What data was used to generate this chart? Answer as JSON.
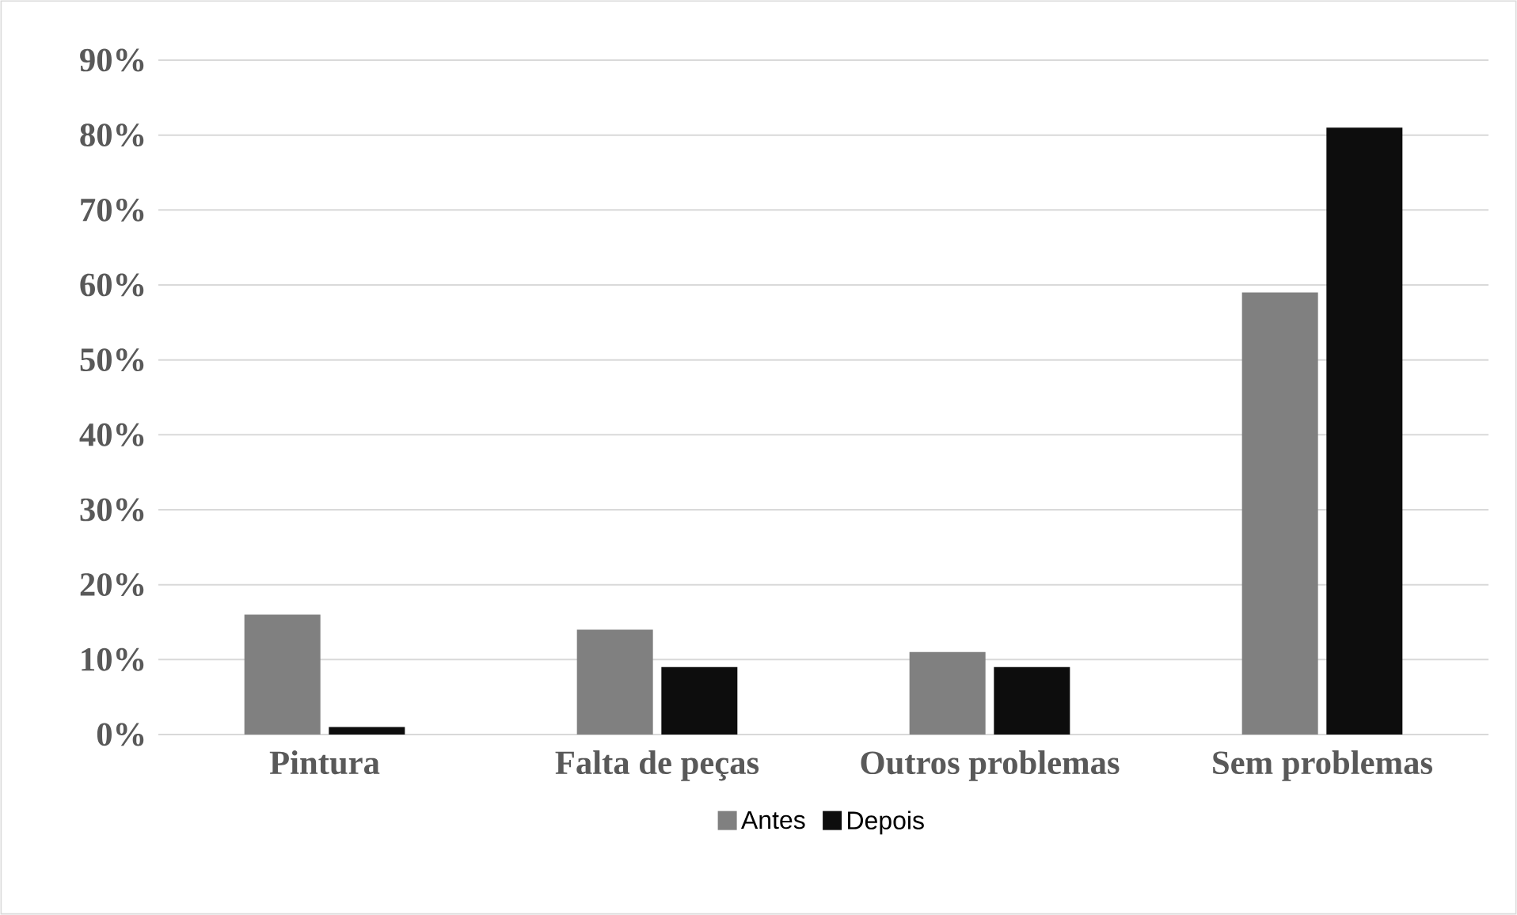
{
  "chart_data": {
    "type": "bar",
    "categories": [
      "Pintura",
      "Falta de peças",
      "Outros problemas",
      "Sem problemas"
    ],
    "series": [
      {
        "name": "Antes",
        "color": "#808080",
        "values": [
          16,
          14,
          11,
          59
        ]
      },
      {
        "name": "Depois",
        "color": "#0d0d0d",
        "values": [
          1,
          9,
          9,
          81
        ]
      }
    ],
    "ylim": [
      0,
      90
    ],
    "yticks": [
      {
        "value": 0,
        "label": "0%"
      },
      {
        "value": 10,
        "label": "10%"
      },
      {
        "value": 20,
        "label": "20%"
      },
      {
        "value": 30,
        "label": "30%"
      },
      {
        "value": 40,
        "label": "40%"
      },
      {
        "value": 50,
        "label": "50%"
      },
      {
        "value": 60,
        "label": "60%"
      },
      {
        "value": 70,
        "label": "70%"
      },
      {
        "value": 80,
        "label": "80%"
      },
      {
        "value": 90,
        "label": "90%"
      }
    ],
    "grid": "y",
    "legend": "bottom"
  }
}
